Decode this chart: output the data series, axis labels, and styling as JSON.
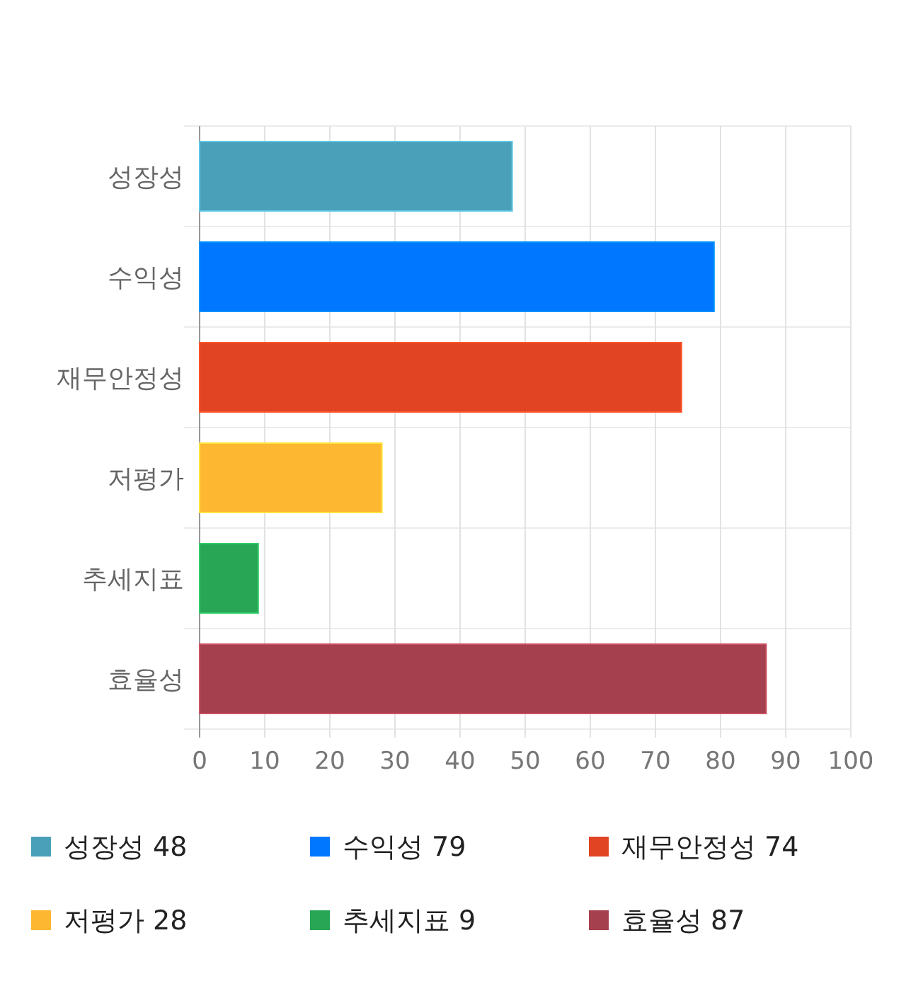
{
  "chart_data": {
    "type": "bar",
    "orientation": "horizontal",
    "stacked": true,
    "categories": [
      "성장성",
      "수익성",
      "재무안정성",
      "저평가",
      "추세지표",
      "효율성"
    ],
    "series": [
      {
        "name": "성장성 48",
        "color": "#4aa0b8",
        "values": [
          48,
          null,
          null,
          null,
          null,
          null
        ]
      },
      {
        "name": "수익성 79",
        "color": "#0077ff",
        "values": [
          null,
          79,
          null,
          null,
          null,
          null
        ]
      },
      {
        "name": "재무안정성 74",
        "color": "#e04422",
        "values": [
          null,
          null,
          74,
          null,
          null,
          null
        ]
      },
      {
        "name": "저평가 28",
        "color": "#fdb731",
        "values": [
          null,
          null,
          null,
          28,
          null,
          null
        ]
      },
      {
        "name": "추세지표 9",
        "color": "#28a555",
        "values": [
          null,
          null,
          null,
          null,
          9,
          null
        ]
      },
      {
        "name": "효율성 87",
        "color": "#a5404e",
        "values": [
          null,
          null,
          null,
          null,
          null,
          87
        ]
      }
    ],
    "xlim": [
      0,
      100
    ],
    "xticks": [
      0,
      10,
      20,
      30,
      40,
      50,
      60,
      70,
      80,
      90,
      100
    ],
    "grid": true,
    "legend": "bottom"
  }
}
